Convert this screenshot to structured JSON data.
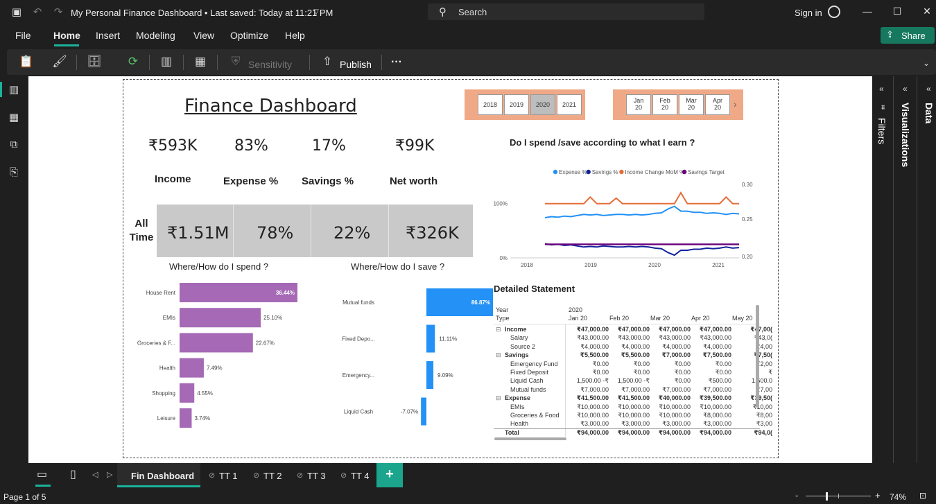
{
  "window": {
    "doc_title": "My Personal Finance Dashboard • Last saved: Today at 11:21 PM",
    "search_placeholder": "Search",
    "signin_label": "Sign in"
  },
  "menu": {
    "items": [
      "File",
      "Home",
      "Insert",
      "Modeling",
      "View",
      "Optimize",
      "Help"
    ],
    "share_label": "Share"
  },
  "ribbon": {
    "sensitivity_label": "Sensitivity",
    "publish_label": "Publish",
    "more_label": "···"
  },
  "right_panes": {
    "filters_label": "Filters",
    "visualizations_label": "Visualizations",
    "data_label": "Data"
  },
  "report": {
    "title": "Finance Dashboard",
    "year_slicer": {
      "options": [
        "2018",
        "2019",
        "2020",
        "2021"
      ],
      "selected": "2020"
    },
    "month_slicer": {
      "options": [
        [
          "Jan",
          "20"
        ],
        [
          "Feb",
          "20"
        ],
        [
          "Mar",
          "20"
        ],
        [
          "Apr",
          "20"
        ]
      ]
    },
    "kpis": [
      {
        "value": "₹593K",
        "label": "Income"
      },
      {
        "value": "83%",
        "label": "Expense %"
      },
      {
        "value": "17%",
        "label": "Savings %"
      },
      {
        "value": "₹99K",
        "label": "Net worth"
      }
    ],
    "all_time": {
      "label_line1": "All",
      "label_line2": "Time",
      "values": [
        "₹1.51M",
        "78%",
        "22%",
        "₹326K"
      ]
    },
    "spend_title": "Where/How do I spend ?",
    "save_title": "Where/How do I save ?",
    "line_chart_title": "Do I spend /save according to what I earn ?",
    "statement_title": "Detailed Statement",
    "matrix": {
      "year_label": "Year",
      "type_label": "Type",
      "year_value": "2020",
      "months": [
        "Jan 20",
        "Feb 20",
        "Mar 20",
        "Apr 20",
        "May 20"
      ],
      "rows": [
        {
          "name": "Income",
          "level": 0,
          "bold": true,
          "expand": "⊟",
          "cells": [
            "₹47,000.00",
            "₹47,000.00",
            "₹47,000.00",
            "₹47,000.00",
            "₹47,00("
          ]
        },
        {
          "name": "Salary",
          "level": 1,
          "bold": false,
          "expand": "",
          "cells": [
            "₹43,000.00",
            "₹43,000.00",
            "₹43,000.00",
            "₹43,000.00",
            "₹43,0("
          ]
        },
        {
          "name": "Source 2",
          "level": 1,
          "bold": false,
          "expand": "",
          "cells": [
            "₹4,000.00",
            "₹4,000.00",
            "₹4,000.00",
            "₹4,000.00",
            "₹4,00"
          ]
        },
        {
          "name": "Savings",
          "level": 0,
          "bold": true,
          "expand": "⊟",
          "cells": [
            "₹5,500.00",
            "₹5,500.00",
            "₹7,000.00",
            "₹7,500.00",
            "₹7,50("
          ]
        },
        {
          "name": "Emergency Fund",
          "level": 1,
          "bold": false,
          "expand": "",
          "cells": [
            "₹0.00",
            "₹0.00",
            "₹0.00",
            "₹0.00",
            "₹2,00"
          ]
        },
        {
          "name": "Fixed Deposit",
          "level": 1,
          "bold": false,
          "expand": "",
          "cells": [
            "₹0.00",
            "₹0.00",
            "₹0.00",
            "₹0.00",
            "₹"
          ]
        },
        {
          "name": "Liquid Cash",
          "level": 1,
          "bold": false,
          "expand": "",
          "cells": [
            "1,500.00 -₹",
            "1,500.00 -₹",
            "₹0.00",
            "₹500.00",
            "1,500.0"
          ]
        },
        {
          "name": "Mutual funds",
          "level": 1,
          "bold": false,
          "expand": "",
          "cells": [
            "₹7,000.00",
            "₹7,000.00",
            "₹7,000.00",
            "₹7,000.00",
            "₹7,00"
          ]
        },
        {
          "name": "Expense",
          "level": 0,
          "bold": true,
          "expand": "⊟",
          "cells": [
            "₹41,500.00",
            "₹41,500.00",
            "₹40,000.00",
            "₹39,500.00",
            "₹39,50("
          ]
        },
        {
          "name": "EMIs",
          "level": 1,
          "bold": false,
          "expand": "",
          "cells": [
            "₹10,000.00",
            "₹10,000.00",
            "₹10,000.00",
            "₹10,000.00",
            "₹10,00"
          ]
        },
        {
          "name": "Groceries & Food",
          "level": 1,
          "bold": false,
          "expand": "",
          "cells": [
            "₹10,000.00",
            "₹10,000.00",
            "₹10,000.00",
            "₹8,000.00",
            "₹8,00"
          ]
        },
        {
          "name": "Health",
          "level": 1,
          "bold": false,
          "expand": "",
          "cells": [
            "₹3,000.00",
            "₹3,000.00",
            "₹3,000.00",
            "₹3,000.00",
            "₹3,00"
          ]
        },
        {
          "name": "Total",
          "level": 0,
          "bold": true,
          "expand": "",
          "cells": [
            "₹94,000.00",
            "₹94,000.00",
            "₹94,000.00",
            "₹94,000.00",
            "₹94,0("
          ]
        }
      ]
    }
  },
  "chart_data": [
    {
      "type": "bar",
      "orientation": "horizontal",
      "categories": [
        "House Rent",
        "EMIs",
        "Groceries & F...",
        "Health",
        "Shopping",
        "Leisure"
      ],
      "values": [
        36.44,
        25.1,
        22.67,
        7.49,
        4.55,
        3.74
      ],
      "value_labels": [
        "36.44%",
        "25.10%",
        "22.67%",
        "7.49%",
        "4.55%",
        "3.74%"
      ],
      "color": "#a569b5"
    },
    {
      "type": "bar",
      "orientation": "horizontal",
      "categories": [
        "Mutual funds",
        "Fixed Depo...",
        "Emergency...",
        "Liquid Cash"
      ],
      "values": [
        86.87,
        11.11,
        9.09,
        -7.07
      ],
      "value_labels": [
        "86.87%",
        "11.11%",
        "9.09%",
        "-7.07%"
      ],
      "color": "#2391f5"
    },
    {
      "type": "line",
      "x_ticks": [
        "2018",
        "2019",
        "2020",
        "2021"
      ],
      "y_left_ticks": [
        "100%",
        "0%"
      ],
      "y_right_ticks": [
        "0.30",
        "0.25",
        "0.20"
      ],
      "legend_position": "top",
      "series": [
        {
          "name": "Expense %",
          "color": "#2391f5",
          "values": [
            0.74,
            0.76,
            0.75,
            0.77,
            0.76,
            0.78,
            0.8,
            0.79,
            0.8,
            0.78,
            0.79,
            0.8,
            0.8,
            0.79,
            0.8,
            0.79,
            0.8,
            0.82,
            0.83,
            0.9,
            0.95,
            0.86,
            0.86,
            0.84,
            0.84,
            0.82,
            0.83,
            0.82,
            0.8,
            0.82,
            0.81
          ]
        },
        {
          "name": "Savings %",
          "color": "#12239e",
          "values": [
            0.26,
            0.24,
            0.25,
            0.23,
            0.24,
            0.22,
            0.2,
            0.21,
            0.2,
            0.22,
            0.21,
            0.2,
            0.2,
            0.21,
            0.2,
            0.21,
            0.2,
            0.18,
            0.17,
            0.1,
            0.05,
            0.14,
            0.14,
            0.16,
            0.16,
            0.18,
            0.17,
            0.18,
            0.2,
            0.18,
            0.19
          ]
        },
        {
          "name": "Income Change MoM %",
          "color": "#e66c37",
          "values": [
            1.0,
            1.0,
            1.0,
            1.0,
            1.0,
            1.0,
            1.0,
            1.12,
            1.0,
            1.0,
            1.0,
            1.1,
            1.0,
            1.0,
            1.0,
            1.0,
            1.0,
            1.0,
            1.0,
            1.0,
            1.0,
            1.2,
            1.0,
            1.0,
            1.0,
            1.0,
            1.0,
            1.0,
            1.12,
            1.0,
            1.0
          ]
        },
        {
          "name": "Savings Target",
          "color": "#6b007b",
          "values": [
            0.25,
            0.25,
            0.25,
            0.25,
            0.25,
            0.25,
            0.25,
            0.25,
            0.25,
            0.25,
            0.25,
            0.25,
            0.25,
            0.25,
            0.25,
            0.25,
            0.25,
            0.25,
            0.25,
            0.25,
            0.25,
            0.25,
            0.25,
            0.25,
            0.25,
            0.25,
            0.25,
            0.25,
            0.25,
            0.25,
            0.25
          ]
        }
      ]
    }
  ],
  "pages": {
    "tabs": [
      "Fin Dashboard",
      "TT 1",
      "TT 2",
      "TT 3",
      "TT 4"
    ],
    "active": "Fin Dashboard",
    "add_label": "+"
  },
  "status": {
    "page_label": "Page 1 of 5",
    "zoom_label": "74%"
  }
}
